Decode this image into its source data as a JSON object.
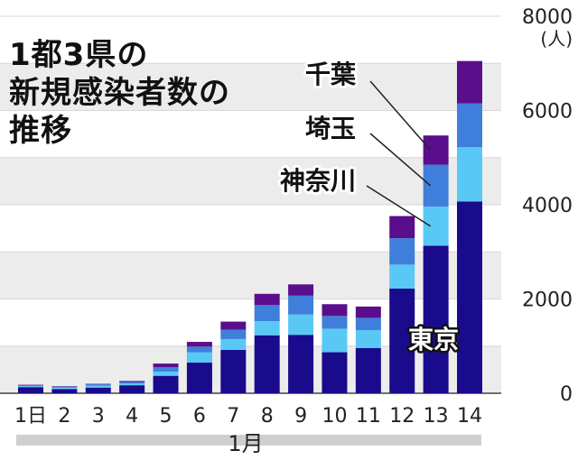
{
  "chart_data": {
    "type": "bar",
    "stacked": true,
    "title_lines": [
      "1都3県の",
      "新規感染者数の",
      "推移"
    ],
    "unit": "(人)",
    "xlabel": "1月",
    "categories": [
      "1日",
      "2",
      "3",
      "4",
      "5",
      "6",
      "7",
      "8",
      "9",
      "10",
      "11",
      "12",
      "13",
      "14"
    ],
    "ylim": [
      0,
      8000
    ],
    "yticks": [
      0,
      2000,
      4000,
      6000,
      8000
    ],
    "series": [
      {
        "name": "東京",
        "color": "#1a0a8c",
        "values": [
          130,
          90,
          120,
          170,
          370,
          650,
          920,
          1230,
          1240,
          870,
          960,
          2220,
          3130,
          4070
        ]
      },
      {
        "name": "神奈川",
        "color": "#59c8f5",
        "values": [
          20,
          30,
          40,
          40,
          90,
          220,
          230,
          300,
          430,
          500,
          380,
          510,
          830,
          1150
        ]
      },
      {
        "name": "埼玉",
        "color": "#3f7fdb",
        "values": [
          20,
          20,
          30,
          30,
          90,
          120,
          200,
          340,
          400,
          270,
          260,
          560,
          890,
          930
        ]
      },
      {
        "name": "千葉",
        "color": "#5a0e8c",
        "values": [
          10,
          10,
          10,
          20,
          80,
          100,
          170,
          240,
          240,
          250,
          240,
          470,
          620,
          900
        ]
      }
    ],
    "grid": "horizontal-bands",
    "legend": "right-side labels with leader lines"
  }
}
